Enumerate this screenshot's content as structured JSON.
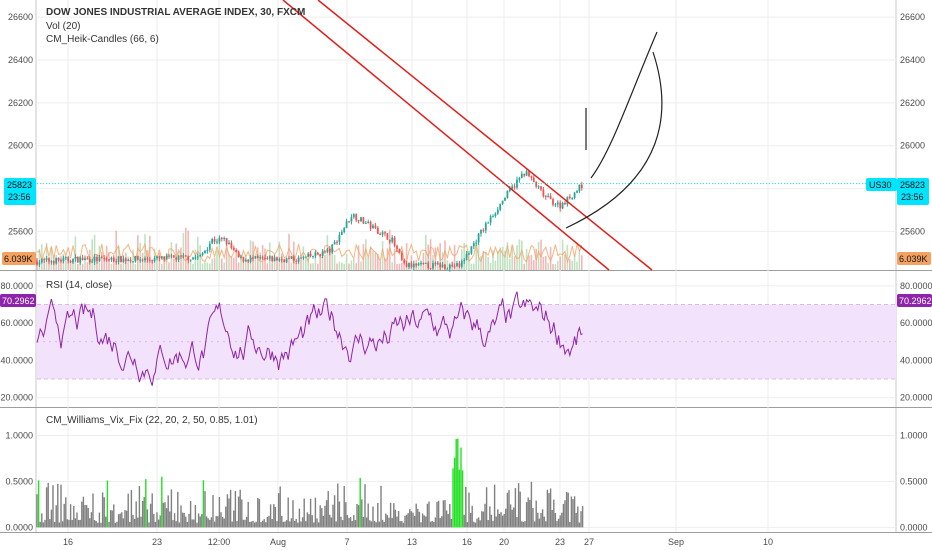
{
  "chart_data": [
    {
      "type": "candlestick",
      "title": "DOW JONES INDUSTRIAL AVERAGE INDEX, 30, FXCM",
      "indicators": [
        "Vol (20)",
        "CM_Heik-Candles (66, 6)"
      ],
      "yticks": [
        25600,
        25800,
        26000,
        26200,
        26400,
        26600
      ],
      "ylim": [
        25420,
        26680
      ],
      "last_price": "25823",
      "countdown": "23:56",
      "symbol": "US30",
      "volume_badge": "6.039K",
      "grid": true,
      "legend_position": "top-left",
      "colors": {
        "up": "#26a69a",
        "down": "#ef5350",
        "channel": "#e0201a",
        "price_line": "#00e5ff",
        "price_badge": "#00e5ff",
        "volume_badge": "#f4a261",
        "heik_line": "#f4a261",
        "drawing": "#222222"
      }
    },
    {
      "type": "line",
      "title": "RSI (14, close)",
      "yticks": [
        "20.0000",
        "40.0000",
        "60.0000",
        "80.0000"
      ],
      "ylim": [
        15,
        88
      ],
      "band": [
        30,
        70
      ],
      "last_value": "70.2962",
      "colors": {
        "line": "#8e24aa",
        "band_fill": "#f3e2fb",
        "band_edge": "#d9b8ec",
        "badge": "#8e24aa"
      }
    },
    {
      "type": "bar",
      "title": "CM_Williams_Vix_Fix (22, 20, 2, 50, 0.85, 1.01)",
      "yticks": [
        "0.0000",
        "0.5000",
        "1.0000"
      ],
      "ylim": [
        -0.05,
        1.3
      ],
      "colors": {
        "normal": "#808080",
        "spike": "#22e022"
      }
    }
  ],
  "x_axis": {
    "labels": [
      "16",
      "23",
      "12:00",
      "Aug",
      "7",
      "13",
      "16",
      "20",
      "23",
      "27",
      "Sep",
      "10"
    ]
  }
}
